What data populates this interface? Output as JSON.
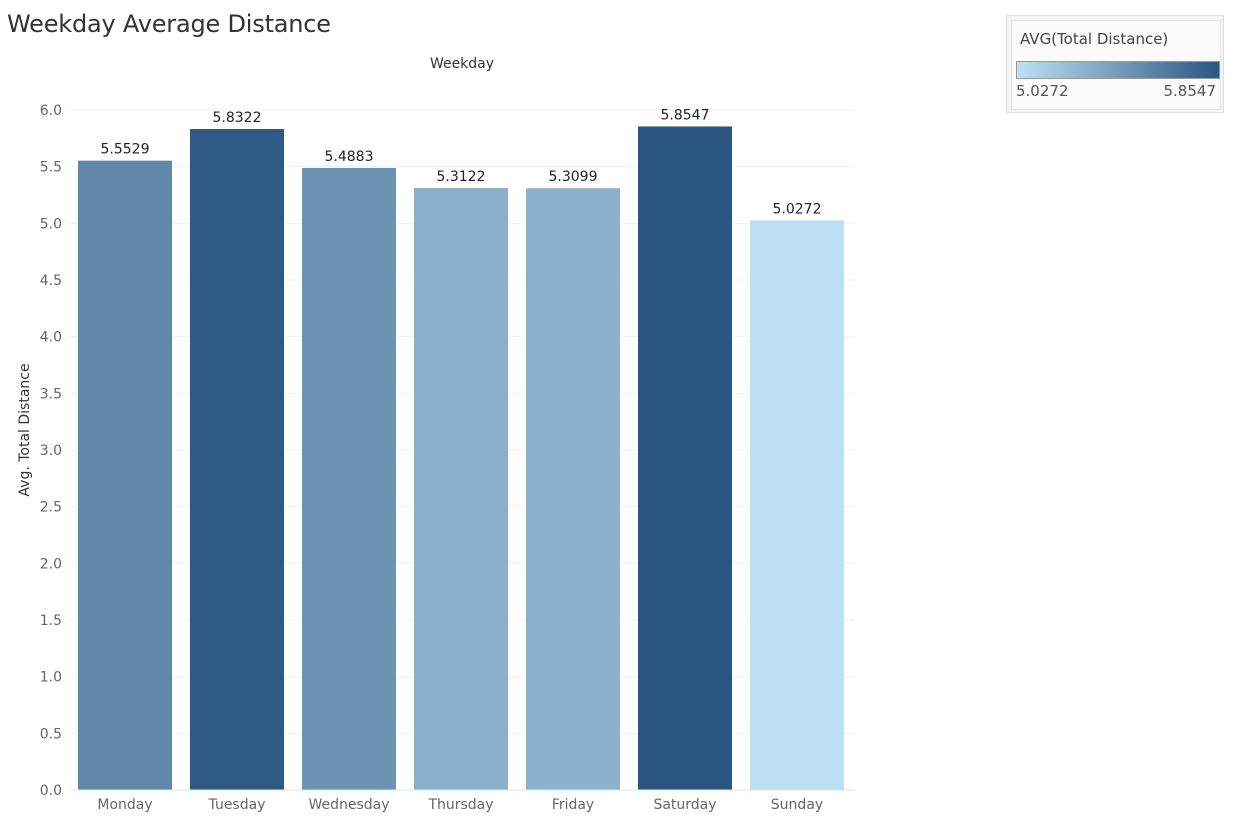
{
  "title": "Weekday Average Distance",
  "legend": {
    "title": "AVG(Total Distance)",
    "min_label": "5.0272",
    "max_label": "5.8547",
    "color_min": "#bde0f3",
    "color_max": "#2b5681"
  },
  "chart_data": {
    "type": "bar",
    "header": "Weekday",
    "ylabel": "Avg. Total Distance",
    "xlabel": "",
    "categories": [
      "Monday",
      "Tuesday",
      "Wednesday",
      "Thursday",
      "Friday",
      "Saturday",
      "Sunday"
    ],
    "values": [
      5.5529,
      5.8322,
      5.4883,
      5.3122,
      5.3099,
      5.8547,
      5.0272
    ],
    "value_labels": [
      "5.5529",
      "5.8322",
      "5.4883",
      "5.3122",
      "5.3099",
      "5.8547",
      "5.0272"
    ],
    "yticks": [
      "0.0",
      "0.5",
      "1.0",
      "1.5",
      "2.0",
      "2.5",
      "3.0",
      "3.5",
      "4.0",
      "4.5",
      "5.0",
      "5.5",
      "6.0"
    ],
    "ylim": [
      0,
      6.0
    ],
    "grid": true,
    "legend": "top-right"
  }
}
